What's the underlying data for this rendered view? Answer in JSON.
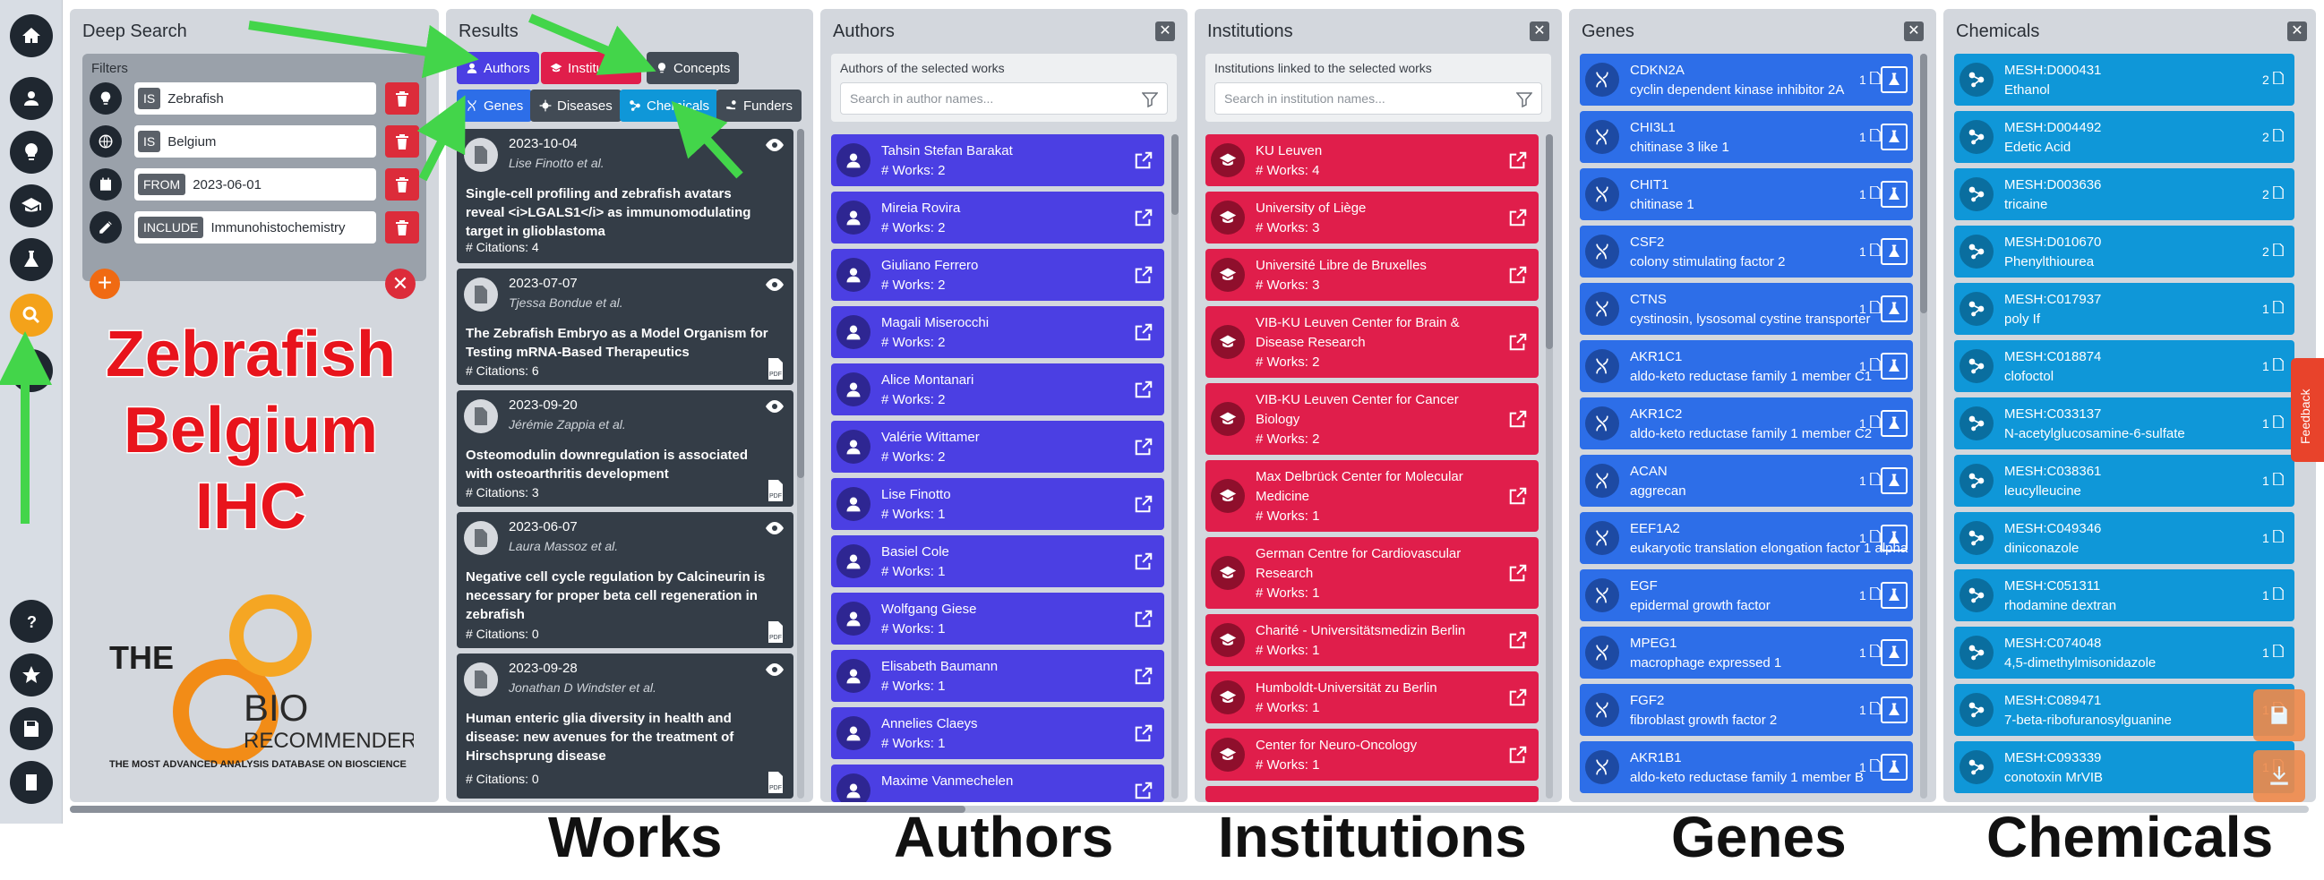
{
  "deep_search": {
    "title": "Deep Search",
    "filters_label": "Filters",
    "filters": [
      {
        "icon": "lightbulb-icon",
        "op": "IS",
        "value": "Zebrafish"
      },
      {
        "icon": "globe-icon",
        "op": "IS",
        "value": "Belgium"
      },
      {
        "icon": "calendar-icon",
        "op": "FROM",
        "value": "2023-06-01"
      },
      {
        "icon": "pencil-icon",
        "op": "INCLUDE",
        "value": "Immunohistochemistry"
      }
    ]
  },
  "annotation": {
    "line1": "Zebrafish",
    "line2": "Belgium",
    "line3": "IHC"
  },
  "logo": {
    "the": "THE",
    "bio": "BIO",
    "recommender": "RECOMMENDER",
    "tagline": "THE MOST ADVANCED ANALYSIS DATABASE ON BIOSCIENCE"
  },
  "results": {
    "title": "Results",
    "tabs": [
      {
        "label": "Authors",
        "color": "#4b3fe3"
      },
      {
        "label": "Institutions",
        "color": "#e01e4b"
      },
      {
        "label": "Concepts",
        "color": "#424b55"
      },
      {
        "label": "Genes",
        "color": "#2d6ee8"
      },
      {
        "label": "Diseases",
        "color": "#424b55"
      },
      {
        "label": "Chemicals",
        "color": "#0f97d8"
      },
      {
        "label": "Funders",
        "color": "#424b55"
      }
    ],
    "works": [
      {
        "date": "2023-10-04",
        "authors": "Lise Finotto et al.",
        "title": "Single-cell profiling and zebrafish avatars reveal <i>LGALS1</i> as immunomodulating target in glioblastoma",
        "citations": "# Citations: 4"
      },
      {
        "date": "2023-07-07",
        "authors": "Tjessa Bondue et al.",
        "title": "The Zebrafish Embryo as a Model Organism for Testing mRNA-Based Therapeutics",
        "citations": "# Citations: 6"
      },
      {
        "date": "2023-09-20",
        "authors": "Jérémie Zappia et al.",
        "title": "Osteomodulin downregulation is associated with osteoarthritis development",
        "citations": "# Citations: 3"
      },
      {
        "date": "2023-06-07",
        "authors": "Laura Massoz et al.",
        "title": "Negative cell cycle regulation by Calcineurin is necessary for proper beta cell regeneration in zebrafish",
        "citations": "# Citations: 0"
      },
      {
        "date": "2023-09-28",
        "authors": "Jonathan D Windster et al.",
        "title": "Human enteric glia diversity in health and disease: new avenues for the treatment of Hirschsprung disease",
        "citations": "# Citations: 0"
      }
    ]
  },
  "authors": {
    "title": "Authors",
    "caption": "Authors of the selected works",
    "placeholder": "Search in author names...",
    "color": "#4b3fe3",
    "items": [
      {
        "name": "Tahsin Stefan Barakat",
        "works": "# Works: 2"
      },
      {
        "name": "Mireia Rovira",
        "works": "# Works: 2"
      },
      {
        "name": "Giuliano Ferrero",
        "works": "# Works: 2"
      },
      {
        "name": "Magali Miserocchi",
        "works": "# Works: 2"
      },
      {
        "name": "Alice Montanari",
        "works": "# Works: 2"
      },
      {
        "name": "Valérie Wittamer",
        "works": "# Works: 2"
      },
      {
        "name": "Lise Finotto",
        "works": "# Works: 1"
      },
      {
        "name": "Basiel Cole",
        "works": "# Works: 1"
      },
      {
        "name": "Wolfgang Giese",
        "works": "# Works: 1"
      },
      {
        "name": "Elisabeth Baumann",
        "works": "# Works: 1"
      },
      {
        "name": "Annelies Claeys",
        "works": "# Works: 1"
      },
      {
        "name": "Maxime Vanmechelen",
        "works": ""
      }
    ]
  },
  "institutions": {
    "title": "Institutions",
    "caption": "Institutions linked to the selected works",
    "placeholder": "Search in institution names...",
    "color": "#e01e4b",
    "items": [
      {
        "name1": "KU Leuven",
        "name2": "",
        "works": "# Works: 4"
      },
      {
        "name1": "University of Liège",
        "name2": "",
        "works": "# Works: 3"
      },
      {
        "name1": "Université Libre de Bruxelles",
        "name2": "",
        "works": "# Works: 3"
      },
      {
        "name1": "VIB-KU Leuven Center for Brain &",
        "name2": "Disease Research",
        "works": "# Works: 2"
      },
      {
        "name1": "VIB-KU Leuven Center for Cancer",
        "name2": "Biology",
        "works": "# Works: 2"
      },
      {
        "name1": "Max Delbrück Center for Molecular",
        "name2": "Medicine",
        "works": "# Works: 1"
      },
      {
        "name1": "German Centre for Cardiovascular",
        "name2": "Research",
        "works": "# Works: 1"
      },
      {
        "name1": "Charité - Universitätsmedizin Berlin",
        "name2": "",
        "works": "# Works: 1"
      },
      {
        "name1": "Humboldt-Universität zu Berlin",
        "name2": "",
        "works": "# Works: 1"
      },
      {
        "name1": "Center for Neuro-Oncology",
        "name2": "",
        "works": "# Works: 1"
      }
    ]
  },
  "genes": {
    "title": "Genes",
    "color": "#2d6ee8",
    "items": [
      {
        "symbol": "CDKN2A",
        "name": "cyclin dependent kinase inhibitor 2A",
        "count": "1"
      },
      {
        "symbol": "CHI3L1",
        "name": "chitinase 3 like 1",
        "count": "1"
      },
      {
        "symbol": "CHIT1",
        "name": "chitinase 1",
        "count": "1"
      },
      {
        "symbol": "CSF2",
        "name": "colony stimulating factor 2",
        "count": "1"
      },
      {
        "symbol": "CTNS",
        "name": "cystinosin, lysosomal cystine transporter",
        "count": "1"
      },
      {
        "symbol": "AKR1C1",
        "name": "aldo-keto reductase family 1 member C1",
        "count": "1"
      },
      {
        "symbol": "AKR1C2",
        "name": "aldo-keto reductase family 1 member C2",
        "count": "1"
      },
      {
        "symbol": "ACAN",
        "name": "aggrecan",
        "count": "1"
      },
      {
        "symbol": "EEF1A2",
        "name": "eukaryotic translation elongation factor 1 alpha",
        "count": "1"
      },
      {
        "symbol": "EGF",
        "name": "epidermal growth factor",
        "count": "1"
      },
      {
        "symbol": "MPEG1",
        "name": "macrophage expressed 1",
        "count": "1"
      },
      {
        "symbol": "FGF2",
        "name": "fibroblast growth factor 2",
        "count": "1"
      },
      {
        "symbol": "AKR1B1",
        "name": "aldo-keto reductase family 1 member B",
        "count": "1"
      }
    ]
  },
  "chemicals": {
    "title": "Chemicals",
    "color": "#0f97d8",
    "items": [
      {
        "id": "MESH:D000431",
        "name": "Ethanol",
        "count": "2"
      },
      {
        "id": "MESH:D004492",
        "name": "Edetic Acid",
        "count": "2"
      },
      {
        "id": "MESH:D003636",
        "name": "tricaine",
        "count": "2"
      },
      {
        "id": "MESH:D010670",
        "name": "Phenylthiourea",
        "count": "2"
      },
      {
        "id": "MESH:C017937",
        "name": "poly If",
        "count": "1"
      },
      {
        "id": "MESH:C018874",
        "name": "clofoctol",
        "count": "1"
      },
      {
        "id": "MESH:C033137",
        "name": "N-acetylglucosamine-6-sulfate",
        "count": "1"
      },
      {
        "id": "MESH:C038361",
        "name": "leucylleucine",
        "count": "1"
      },
      {
        "id": "MESH:C049346",
        "name": "diniconazole",
        "count": "1"
      },
      {
        "id": "MESH:C051311",
        "name": "rhodamine dextran",
        "count": "1"
      },
      {
        "id": "MESH:C074048",
        "name": "4,5-dimethylmisonidazole",
        "count": "1"
      },
      {
        "id": "MESH:C089471",
        "name": "7-beta-ribofuranosylguanine",
        "count": "1"
      },
      {
        "id": "MESH:C093339",
        "name": "conotoxin MrVIB",
        "count": "1"
      }
    ]
  },
  "captions": {
    "works": "Works",
    "authors": "Authors",
    "institutions": "Institutions",
    "genes": "Genes",
    "chemicals": "Chemicals"
  },
  "feedback_label": "Feedback",
  "close_glyph": "✕"
}
